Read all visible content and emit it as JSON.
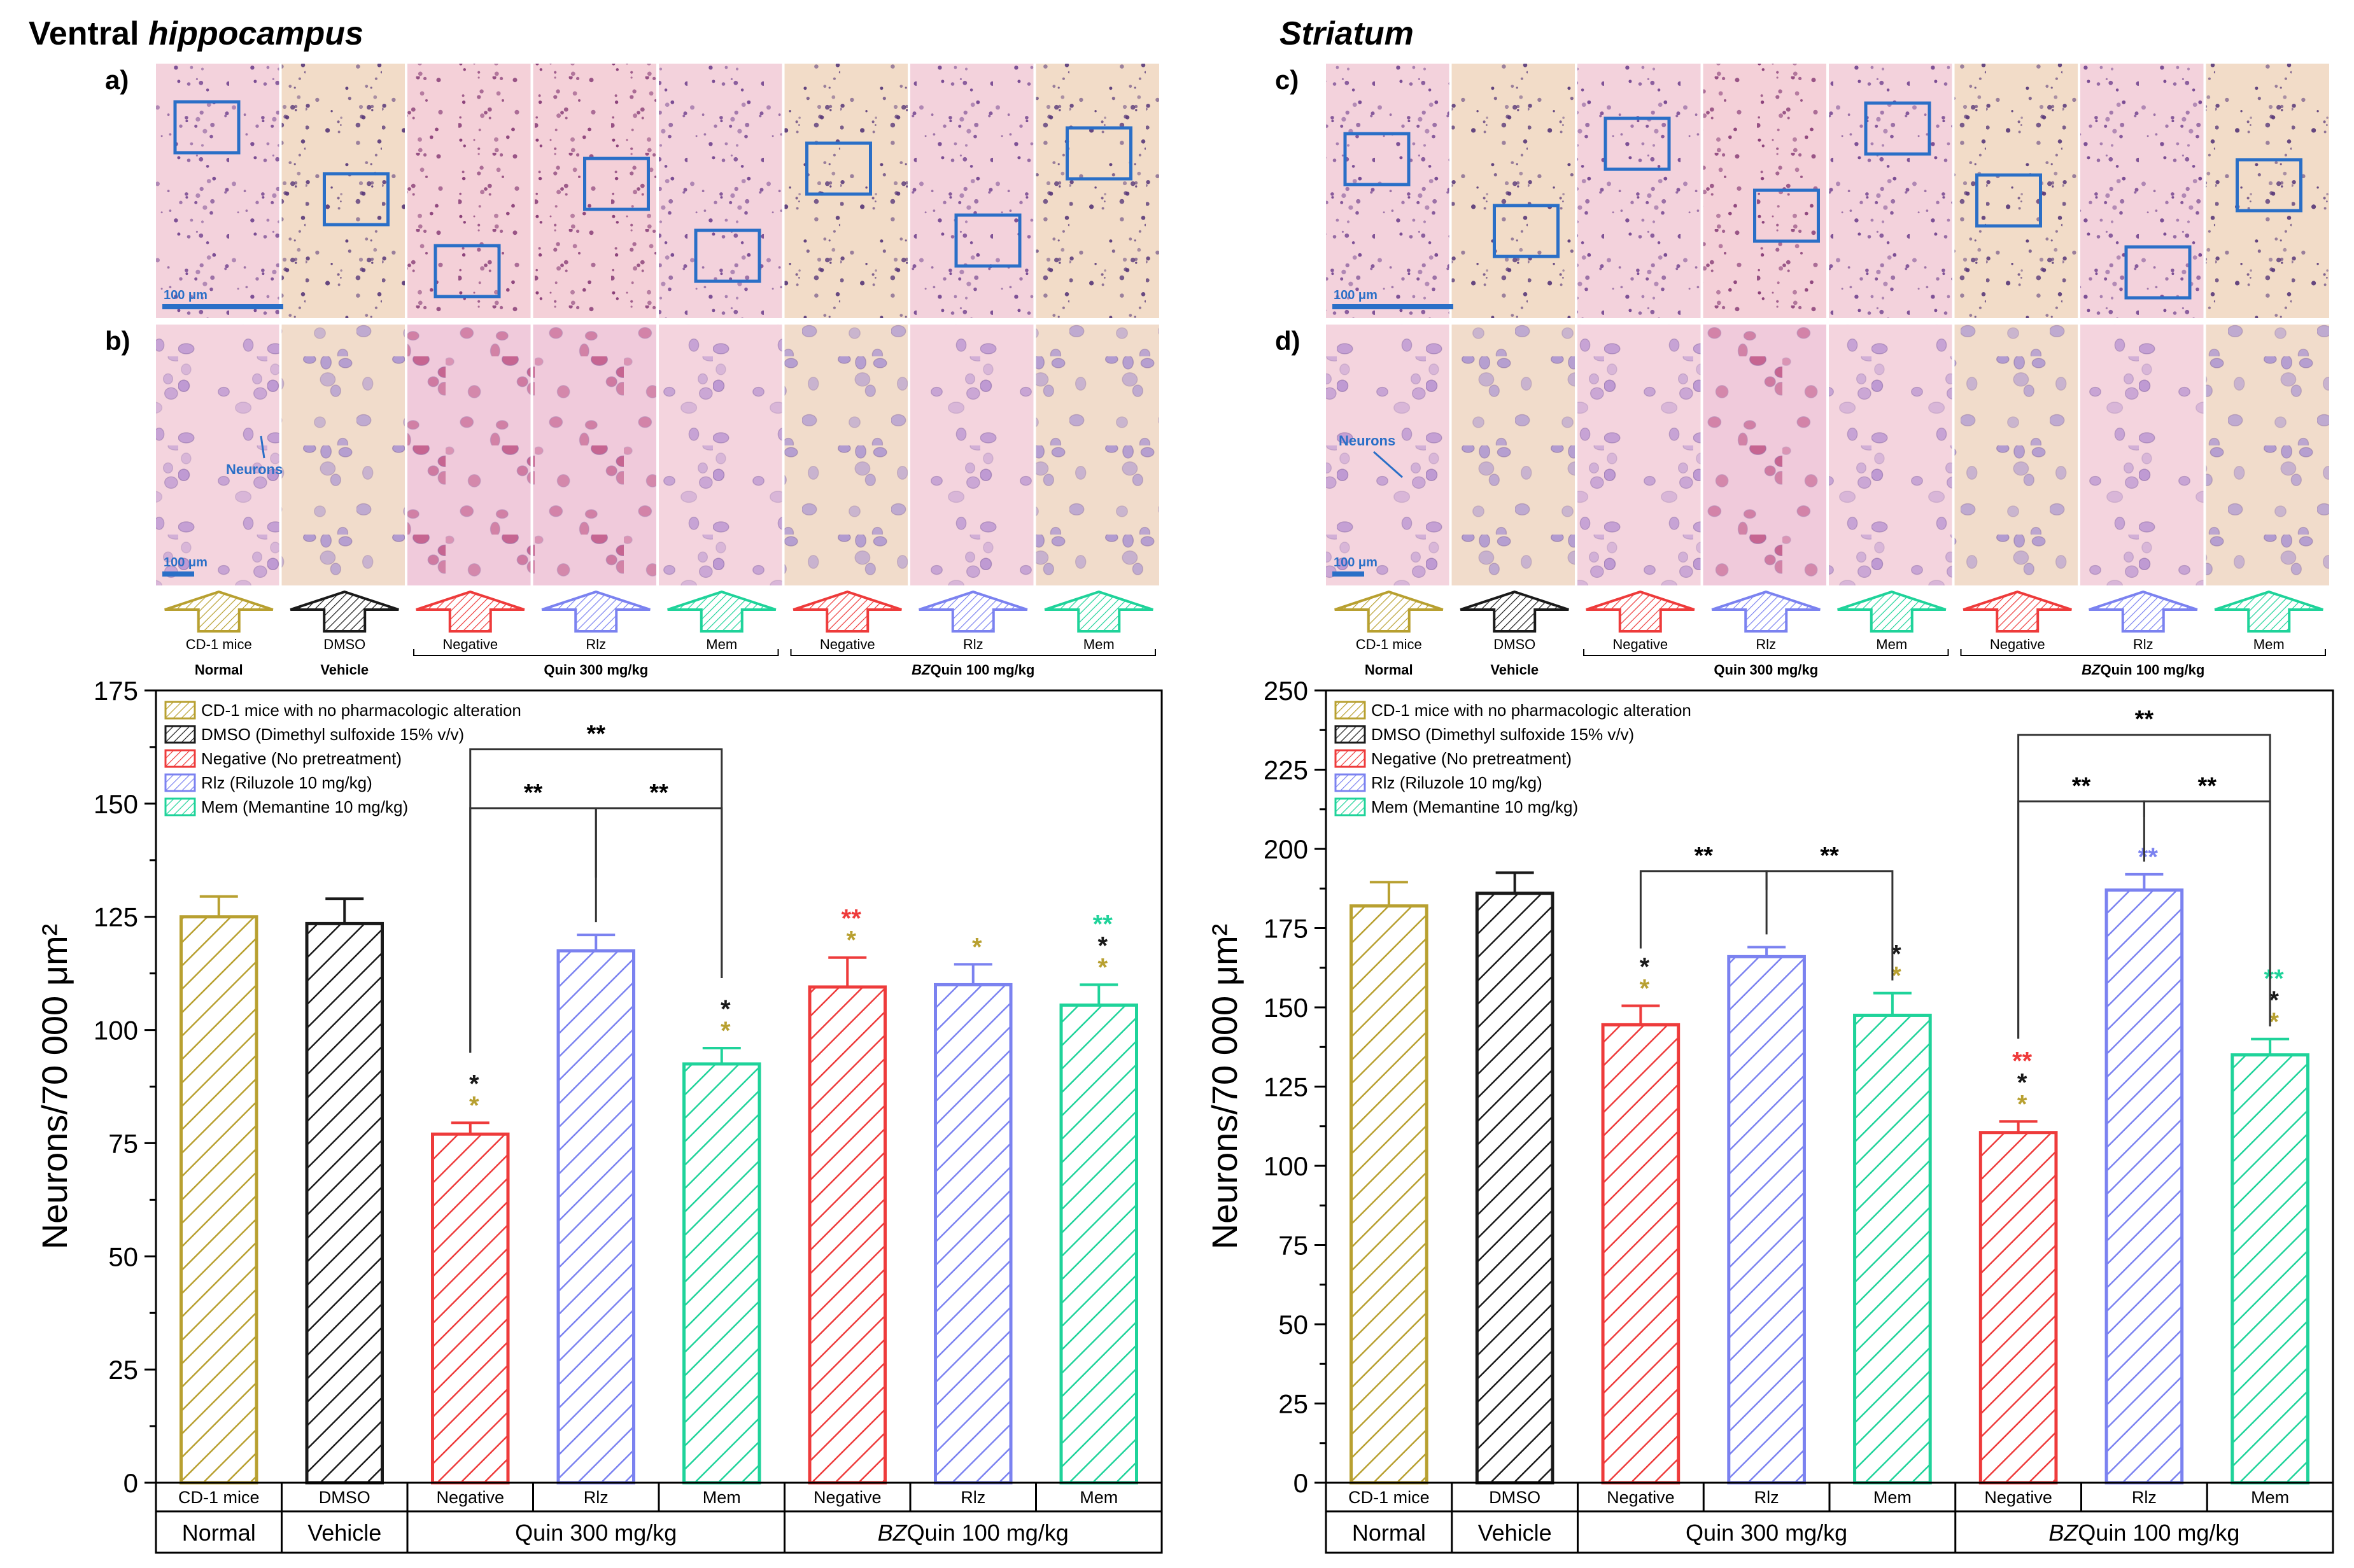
{
  "colors": {
    "normal": "#b8a030",
    "vehicle": "#1a1a1a",
    "negative": "#ee3b3b",
    "rlz": "#7b82f0",
    "mem": "#1fd39a",
    "scalebar": "#2a6fc7"
  },
  "panels": [
    {
      "title_plain": "Ventral ",
      "title_italic": "hippocampus",
      "label_top": "a)",
      "label_bottom": "b)",
      "scale_top": "100 μm",
      "scale_bottom": "100 μm",
      "neuron_label": "Neurons"
    },
    {
      "title_plain": "",
      "title_italic": "Striatum",
      "label_top": "c)",
      "label_bottom": "d)",
      "scale_top": "100 μm",
      "scale_bottom": "100 μm",
      "neuron_label": "Neurons"
    }
  ],
  "arrows": {
    "labels": [
      "CD-1 mice",
      "DMSO",
      "Negative",
      "Rlz",
      "Mem",
      "Negative",
      "Rlz",
      "Mem"
    ],
    "brace_quin": "Quin 300 mg/kg",
    "brace_bz_italic": "BZ",
    "brace_bz_rest": "Quin 100 mg/kg",
    "normal": "Normal",
    "vehicle": "Vehicle"
  },
  "legend": [
    "CD-1 mice with no pharmacologic alteration",
    "DMSO (Dimethyl sulfoxide 15% v/v)",
    "Negative (No pretreatment)",
    "Rlz (Riluzole 10 mg/kg)",
    "Mem (Memantine 10 mg/kg)"
  ],
  "xaxis": {
    "categories": [
      "CD-1 mice",
      "DMSO",
      "Negative",
      "Rlz",
      "Mem",
      "Negative",
      "Rlz",
      "Mem"
    ],
    "groups": [
      "Normal",
      "Vehicle",
      "Quin 300 mg/kg"
    ],
    "group_bz_italic": "BZ",
    "group_bz_rest": "Quin 100 mg/kg"
  },
  "chart_data": [
    {
      "type": "bar",
      "ylabel": "Neurons/70 000 μm²",
      "ylim": [
        0,
        175
      ],
      "yticks": [
        "0",
        "25",
        "50",
        "75",
        "100",
        "125",
        "150",
        "175"
      ],
      "categories": [
        "CD-1 mice",
        "DMSO",
        "Negative",
        "Rlz",
        "Mem",
        "Negative",
        "Rlz",
        "Mem"
      ],
      "values": [
        125,
        123.5,
        77,
        117.5,
        92.5,
        109.5,
        110,
        105.5
      ],
      "errors": [
        4.5,
        5.5,
        2.5,
        3.5,
        3.5,
        6.5,
        4.5,
        4.5
      ],
      "significance": [
        [],
        [],
        [
          "*",
          "*"
        ],
        [],
        [
          "*",
          "*"
        ],
        [
          "**",
          "*"
        ],
        [
          "*"
        ],
        [
          "**",
          "*",
          "*"
        ]
      ],
      "comparisons": [
        {
          "from": 2,
          "to": 3,
          "y": 149,
          "label": "**"
        },
        {
          "from": 3,
          "to": 4,
          "y": 149,
          "label": "**"
        },
        {
          "from": 2,
          "to": 4,
          "y": 162,
          "label": "**"
        }
      ]
    },
    {
      "type": "bar",
      "ylabel": "Neurons/70 000 μm²",
      "ylim": [
        0,
        250
      ],
      "yticks": [
        "0",
        "25",
        "50",
        "75",
        "100",
        "125",
        "150",
        "175",
        "200",
        "225",
        "250"
      ],
      "categories": [
        "CD-1 mice",
        "DMSO",
        "Negative",
        "Rlz",
        "Mem",
        "Negative",
        "Rlz",
        "Mem"
      ],
      "values": [
        182,
        186,
        144.5,
        166,
        147.5,
        110.5,
        187,
        135
      ],
      "errors": [
        7.5,
        6.5,
        6,
        3,
        7,
        3.5,
        5,
        5
      ],
      "significance": [
        [],
        [],
        [
          "*",
          "*"
        ],
        [],
        [
          "*",
          "*"
        ],
        [
          "**",
          "*",
          "*"
        ],
        [
          "**"
        ],
        [
          "**",
          "*",
          "*"
        ]
      ],
      "comparisons": [
        {
          "from": 2,
          "to": 3,
          "y": 193,
          "label": "**"
        },
        {
          "from": 3,
          "to": 4,
          "y": 193,
          "label": "**"
        },
        {
          "from": 5,
          "to": 6,
          "y": 215,
          "label": "**"
        },
        {
          "from": 6,
          "to": 7,
          "y": 215,
          "label": "**"
        },
        {
          "from": 5,
          "to": 7,
          "y": 236,
          "label": "**"
        }
      ]
    }
  ]
}
